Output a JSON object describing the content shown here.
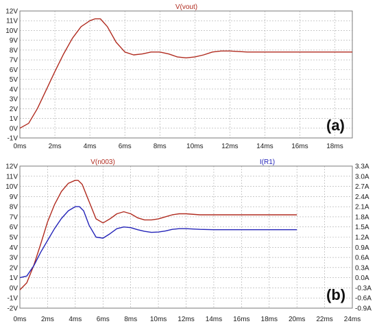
{
  "chart_data": [
    {
      "type": "line",
      "panel_label": "(a)",
      "grid": true,
      "x_unit": "ms",
      "xlim": [
        0,
        19
      ],
      "x_ticks": [
        "0ms",
        "2ms",
        "4ms",
        "6ms",
        "8ms",
        "10ms",
        "12ms",
        "14ms",
        "16ms",
        "18ms"
      ],
      "ylim": [
        -1,
        12
      ],
      "y_ticks": [
        "-1V",
        "0V",
        "1V",
        "2V",
        "3V",
        "4V",
        "5V",
        "6V",
        "7V",
        "8V",
        "9V",
        "10V",
        "11V",
        "12V"
      ],
      "series": [
        {
          "name": "V(vout)",
          "axis": "left",
          "color": "#b02a1e",
          "x": [
            0,
            0.5,
            1,
            1.5,
            2,
            2.5,
            3,
            3.5,
            4,
            4.3,
            4.6,
            5,
            5.5,
            6,
            6.5,
            7,
            7.5,
            8,
            8.5,
            9,
            9.5,
            10,
            10.5,
            11,
            11.5,
            12,
            13,
            14,
            15,
            16,
            17,
            18,
            19
          ],
          "y": [
            0,
            0.5,
            2.0,
            3.9,
            5.8,
            7.6,
            9.2,
            10.4,
            11.0,
            11.2,
            11.2,
            10.4,
            8.8,
            7.8,
            7.5,
            7.6,
            7.8,
            7.8,
            7.6,
            7.3,
            7.2,
            7.3,
            7.5,
            7.8,
            7.9,
            7.9,
            7.8,
            7.8,
            7.8,
            7.8,
            7.8,
            7.8,
            7.8
          ]
        }
      ]
    },
    {
      "type": "line",
      "panel_label": "(b)",
      "grid": true,
      "x_unit": "ms",
      "xlim": [
        0,
        24
      ],
      "x_ticks": [
        "0ms",
        "2ms",
        "4ms",
        "6ms",
        "8ms",
        "10ms",
        "12ms",
        "14ms",
        "16ms",
        "18ms",
        "20ms",
        "22ms",
        "24ms"
      ],
      "ylim": [
        -2,
        12
      ],
      "y_ticks": [
        "-2V",
        "-1V",
        "0V",
        "1V",
        "2V",
        "3V",
        "4V",
        "5V",
        "6V",
        "7V",
        "8V",
        "9V",
        "10V",
        "11V",
        "12V"
      ],
      "y2lim": [
        -0.9,
        3.3
      ],
      "y2_ticks": [
        "-0.9A",
        "-0.6A",
        "-0.3A",
        "0.0A",
        "0.3A",
        "0.6A",
        "0.9A",
        "1.2A",
        "1.5A",
        "1.8A",
        "2.1A",
        "2.4A",
        "2.7A",
        "3.0A",
        "3.3A"
      ],
      "series": [
        {
          "name": "V(n003)",
          "axis": "left",
          "color": "#b02a1e",
          "x": [
            0,
            0.5,
            1,
            1.5,
            2,
            2.5,
            3,
            3.5,
            4,
            4.2,
            4.5,
            5,
            5.5,
            6,
            6.5,
            7,
            7.5,
            8,
            8.5,
            9,
            9.5,
            10,
            10.5,
            11,
            11.5,
            12,
            13,
            14,
            15,
            16,
            17,
            18,
            19,
            20
          ],
          "y": [
            -0.2,
            0.5,
            2.2,
            4.3,
            6.5,
            8.2,
            9.5,
            10.3,
            10.6,
            10.6,
            10.2,
            8.5,
            6.8,
            6.4,
            6.8,
            7.3,
            7.5,
            7.3,
            6.9,
            6.7,
            6.7,
            6.8,
            7.0,
            7.2,
            7.3,
            7.3,
            7.2,
            7.2,
            7.2,
            7.2,
            7.2,
            7.2,
            7.2,
            7.2
          ]
        },
        {
          "name": "I(R1)",
          "axis": "right",
          "color": "#2323b8",
          "x": [
            0,
            0.5,
            1,
            1.5,
            2,
            2.5,
            3,
            3.5,
            4,
            4.3,
            4.6,
            5,
            5.5,
            6,
            6.5,
            7,
            7.5,
            8,
            8.5,
            9,
            9.5,
            10,
            10.5,
            11,
            11.5,
            12,
            13,
            14,
            15,
            16,
            17,
            18,
            19,
            20
          ],
          "y": [
            0.0,
            0.05,
            0.35,
            0.75,
            1.1,
            1.45,
            1.75,
            1.98,
            2.1,
            2.1,
            1.98,
            1.55,
            1.2,
            1.17,
            1.3,
            1.45,
            1.5,
            1.48,
            1.42,
            1.37,
            1.34,
            1.35,
            1.38,
            1.43,
            1.45,
            1.45,
            1.43,
            1.42,
            1.42,
            1.42,
            1.42,
            1.42,
            1.42,
            1.42
          ]
        }
      ]
    }
  ]
}
